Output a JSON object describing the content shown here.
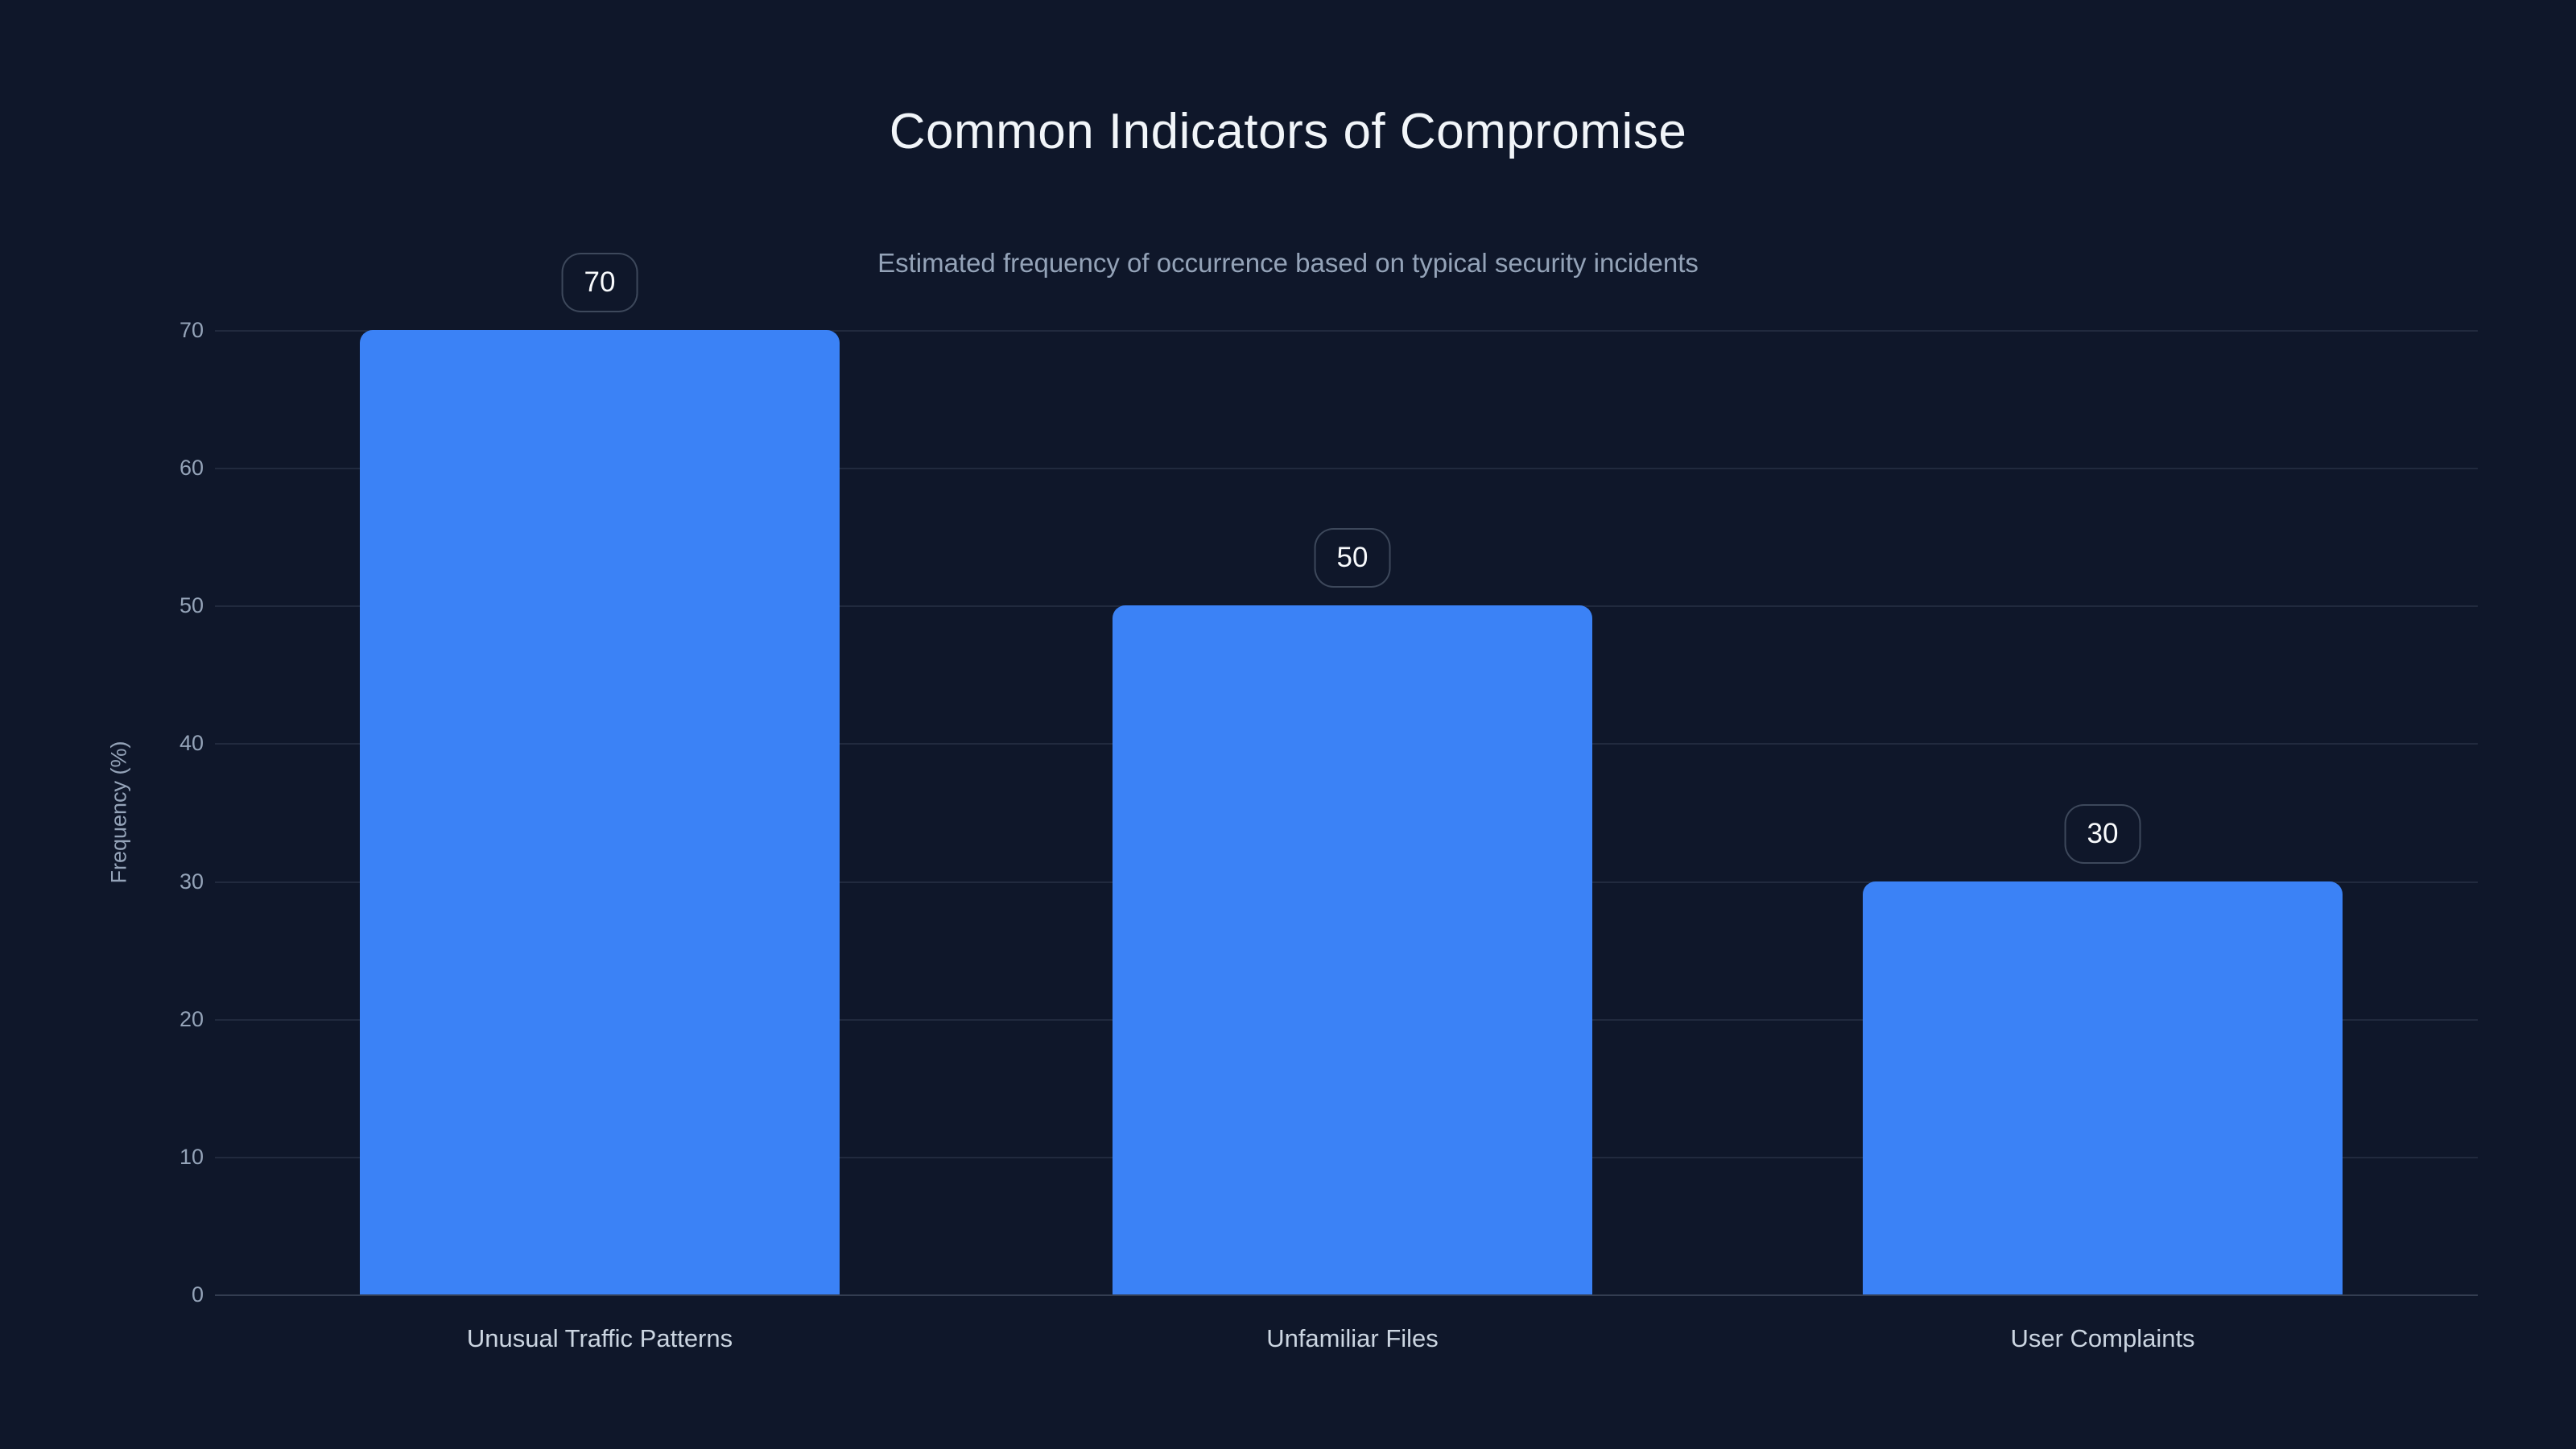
{
  "page": {
    "background": "#0f172a",
    "title_color": "#f1f5f9",
    "subtitle_color": "#94a3b8",
    "tick_color": "#94a3b8",
    "xlabel_color": "#cbd5e1",
    "gridline_color": "rgba(148,163,184,0.14)",
    "axisline_color": "rgba(148,163,184,0.28)",
    "badge_text_color": "#f8fafc",
    "badge_bg": "#0f172a"
  },
  "chart_data": {
    "type": "bar",
    "title": "Common Indicators of Compromise",
    "subtitle": "Estimated frequency of occurrence based on typical security incidents",
    "categories": [
      "Unusual Traffic Patterns",
      "Unfamiliar Files",
      "User Complaints"
    ],
    "values": [
      70,
      50,
      30
    ],
    "value_labels": [
      "70",
      "50",
      "30"
    ],
    "xlabel": "",
    "ylabel": "Frequency (%)",
    "ylim": [
      0,
      70
    ],
    "yticks": [
      0,
      10,
      20,
      30,
      40,
      50,
      60,
      70
    ],
    "bar_color": "#3b82f6",
    "grid": true,
    "legend_position": "none"
  }
}
